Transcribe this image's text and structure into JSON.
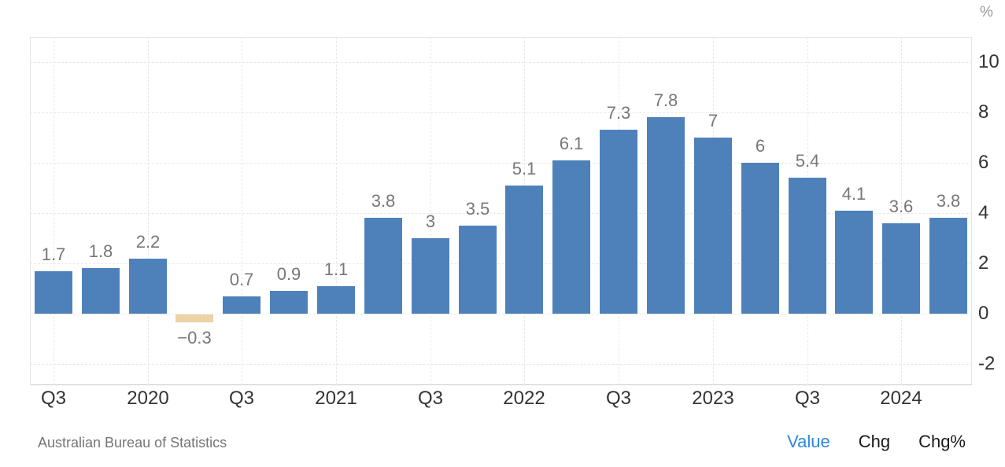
{
  "chart_data": {
    "type": "bar",
    "title": "",
    "xlabel": "",
    "ylabel": "",
    "y_axis_unit": "%",
    "ylim": [
      -2.84,
      11.0
    ],
    "grid": true,
    "legend_position": "none",
    "values": [
      1.7,
      1.8,
      2.2,
      -0.3,
      0.7,
      0.9,
      1.1,
      3.8,
      3,
      3.5,
      5.1,
      6.1,
      7.3,
      7.8,
      7,
      6,
      5.4,
      4.1,
      3.6,
      3.8
    ],
    "bar_labels": [
      "1.7",
      "1.8",
      "2.2",
      "−0.3",
      "0.7",
      "0.9",
      "1.1",
      "3.8",
      "3",
      "3.5",
      "5.1",
      "6.1",
      "7.3",
      "7.8",
      "7",
      "6",
      "5.4",
      "4.1",
      "3.6",
      "3.8"
    ],
    "y_ticks": [
      10,
      8,
      6,
      4,
      2,
      0,
      -2
    ],
    "x_ticks": [
      {
        "label": "Q3",
        "bar_index": 0
      },
      {
        "label": "2020",
        "bar_index": 2
      },
      {
        "label": "Q3",
        "bar_index": 4
      },
      {
        "label": "2021",
        "bar_index": 6
      },
      {
        "label": "Q3",
        "bar_index": 8
      },
      {
        "label": "2022",
        "bar_index": 10
      },
      {
        "label": "Q3",
        "bar_index": 12
      },
      {
        "label": "2023",
        "bar_index": 14
      },
      {
        "label": "Q3",
        "bar_index": 16
      },
      {
        "label": "2024",
        "bar_index": 18
      }
    ],
    "colors": {
      "bar_positive": "#4e81ba",
      "bar_negative": "#ecd2a4",
      "bar_value_label": "#777777",
      "axis_text": "#333333",
      "unit_text": "#999999",
      "gridline": "#e8e8e8"
    }
  },
  "footer": {
    "source": "Australian Bureau of Statistics",
    "links": [
      {
        "label": "Value",
        "active": true
      },
      {
        "label": "Chg",
        "active": false
      },
      {
        "label": "Chg%",
        "active": false
      }
    ],
    "active_link_color": "#2e87e0"
  }
}
